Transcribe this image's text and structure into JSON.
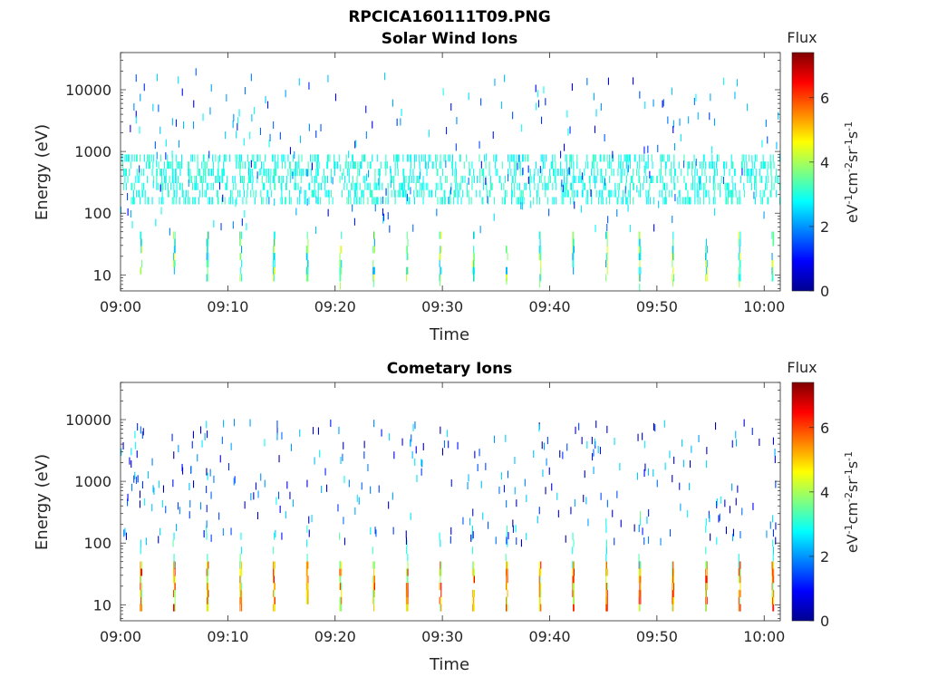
{
  "figure_title": "RPCICA160111T09.PNG",
  "colorbar": {
    "title": "Flux",
    "label": "eV-1cm-2sr-1s-1",
    "ticks": [
      "0",
      "2",
      "4",
      "6"
    ],
    "range": [
      0,
      7.4
    ],
    "colormap": "jet"
  },
  "chart_data": [
    {
      "type": "heatmap",
      "title": "Solar Wind Ions",
      "xlabel": "Time",
      "ylabel": "Energy (eV)",
      "x_ticks": [
        "09:00",
        "09:10",
        "09:20",
        "09:30",
        "09:40",
        "09:50",
        "10:00"
      ],
      "xlim": [
        "09:00",
        "10:01.5"
      ],
      "y_ticks": [
        "10",
        "100",
        "1000",
        "10000"
      ],
      "ylim": [
        5.5,
        40000
      ],
      "y_scale": "log",
      "sweep_period_min": 3.1,
      "low_band": {
        "energy_eV": [
          9,
          45
        ],
        "flux_range": [
          2.0,
          4.6
        ]
      },
      "main_band": {
        "energy_eV": [
          160,
          800
        ],
        "flux_range": [
          2.6,
          3.3
        ]
      },
      "sparse_counts": {
        "energy_eV": [
          50,
          20000
        ],
        "flux_range": [
          0.8,
          3.0
        ]
      }
    },
    {
      "type": "heatmap",
      "title": "Cometary Ions",
      "xlabel": "Time",
      "ylabel": "Energy (eV)",
      "x_ticks": [
        "09:00",
        "09:10",
        "09:20",
        "09:30",
        "09:40",
        "09:50",
        "10:00"
      ],
      "xlim": [
        "09:00",
        "10:01.5"
      ],
      "y_ticks": [
        "10",
        "100",
        "1000",
        "10000"
      ],
      "ylim": [
        5.5,
        40000
      ],
      "y_scale": "log",
      "sweep_period_min": 3.1,
      "low_band": {
        "energy_eV": [
          9,
          45
        ],
        "flux_range": [
          3.5,
          6.6
        ]
      },
      "spikes": {
        "energy_eV": [
          6,
          300
        ],
        "flux_range": [
          2.5,
          3.6
        ]
      },
      "sparse_counts": {
        "energy_eV": [
          100,
          9000
        ],
        "flux_range": [
          0.2,
          2.8
        ]
      }
    }
  ]
}
